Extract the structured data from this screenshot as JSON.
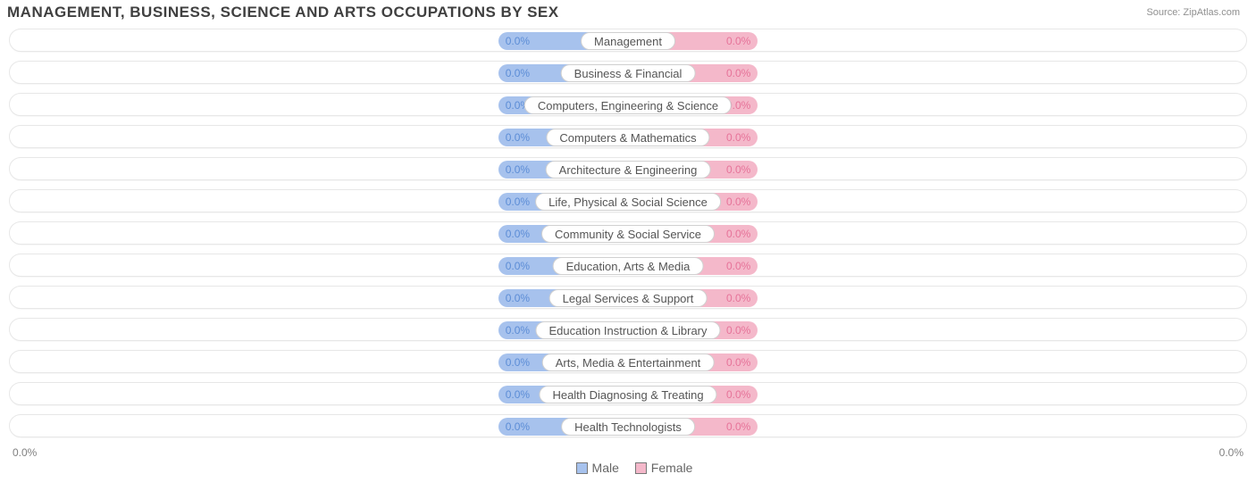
{
  "chart": {
    "title": "MANAGEMENT, BUSINESS, SCIENCE AND ARTS OCCUPATIONS BY SEX",
    "title_fontsize": 17,
    "title_color": "#404040",
    "source_prefix": "Source: ",
    "source_name": "ZipAtlas.com",
    "background_color": "#ffffff",
    "track_border_color": "#e7e7e7",
    "label_border_color": "#d0d0d0",
    "male_fill": "#a7c2ed",
    "male_text": "#5c8dd6",
    "female_fill": "#f4b8ca",
    "female_text": "#e67399",
    "seg_width_pct": 10.5,
    "axis_left": "0.0%",
    "axis_right": "0.0%",
    "legend": {
      "male": "Male",
      "female": "Female"
    },
    "categories": [
      {
        "name": "Management",
        "male": "0.0%",
        "female": "0.0%"
      },
      {
        "name": "Business & Financial",
        "male": "0.0%",
        "female": "0.0%"
      },
      {
        "name": "Computers, Engineering & Science",
        "male": "0.0%",
        "female": "0.0%"
      },
      {
        "name": "Computers & Mathematics",
        "male": "0.0%",
        "female": "0.0%"
      },
      {
        "name": "Architecture & Engineering",
        "male": "0.0%",
        "female": "0.0%"
      },
      {
        "name": "Life, Physical & Social Science",
        "male": "0.0%",
        "female": "0.0%"
      },
      {
        "name": "Community & Social Service",
        "male": "0.0%",
        "female": "0.0%"
      },
      {
        "name": "Education, Arts & Media",
        "male": "0.0%",
        "female": "0.0%"
      },
      {
        "name": "Legal Services & Support",
        "male": "0.0%",
        "female": "0.0%"
      },
      {
        "name": "Education Instruction & Library",
        "male": "0.0%",
        "female": "0.0%"
      },
      {
        "name": "Arts, Media & Entertainment",
        "male": "0.0%",
        "female": "0.0%"
      },
      {
        "name": "Health Diagnosing & Treating",
        "male": "0.0%",
        "female": "0.0%"
      },
      {
        "name": "Health Technologists",
        "male": "0.0%",
        "female": "0.0%"
      }
    ]
  }
}
